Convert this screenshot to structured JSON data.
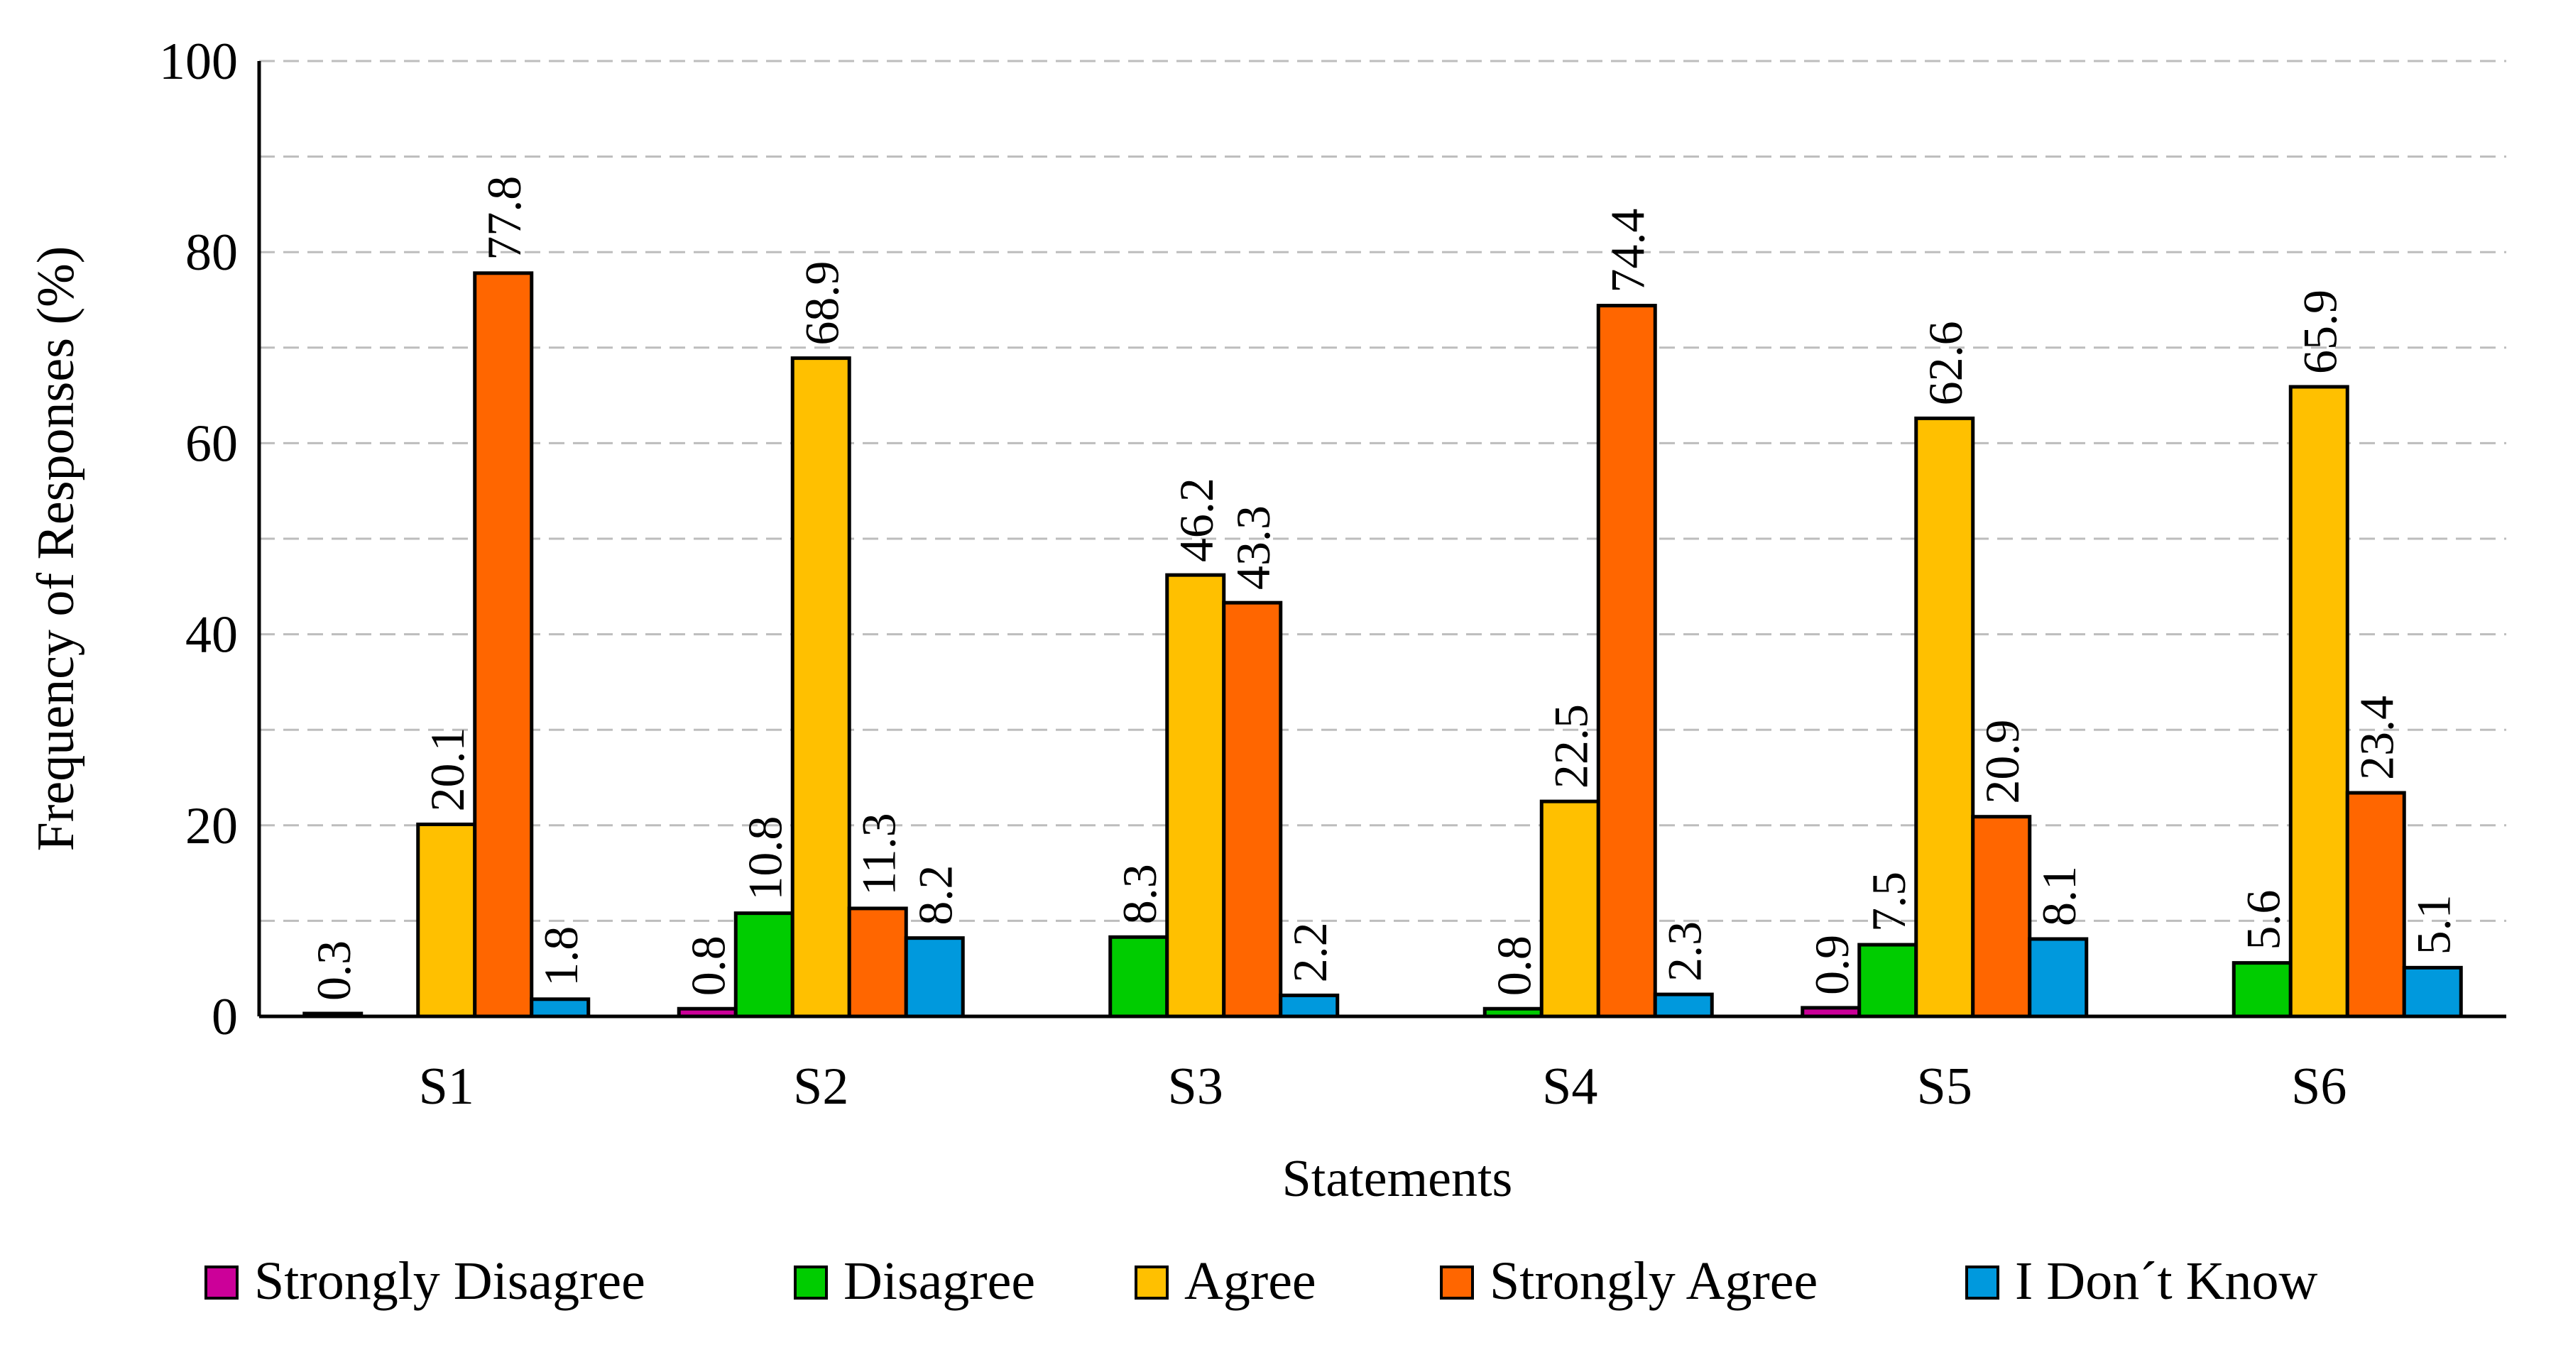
{
  "chart_data": {
    "type": "bar",
    "title": "",
    "xlabel": "Statements",
    "ylabel": "Frequency of Responses (%)",
    "ylim": [
      0,
      100
    ],
    "yticks": [
      0,
      20,
      40,
      60,
      80,
      100
    ],
    "yticks_labels": [
      "0",
      "20",
      "40",
      "60",
      "80",
      "100"
    ],
    "grid": true,
    "legend_position": "bottom",
    "categories": [
      "S1",
      "S2",
      "S3",
      "S4",
      "S5",
      "S6"
    ],
    "series": [
      {
        "name": "Strongly Disagree",
        "color": "#CC0099",
        "values": [
          0.3,
          0.8,
          null,
          null,
          0.9,
          null
        ],
        "labels": [
          "0.3",
          "0.8",
          "",
          "",
          "0.9",
          ""
        ]
      },
      {
        "name": "Disagree",
        "color": "#00CC00",
        "values": [
          null,
          10.8,
          8.3,
          0.8,
          7.5,
          5.6
        ],
        "labels": [
          "",
          "10.8",
          "8.3",
          "0.8",
          "7.5",
          "5.6"
        ]
      },
      {
        "name": "Agree",
        "color": "#FFC000",
        "values": [
          20.1,
          68.9,
          46.2,
          22.5,
          62.6,
          65.9
        ],
        "labels": [
          "20.1",
          "68.9",
          "46.2",
          "22.5",
          "62.6",
          "65.9"
        ]
      },
      {
        "name": "Strongly Agree",
        "color": "#FF6600",
        "values": [
          77.8,
          11.3,
          43.3,
          74.4,
          20.9,
          23.4
        ],
        "labels": [
          "77.8",
          "11.3",
          "43.3",
          "74.4",
          "20.9",
          "23.4"
        ]
      },
      {
        "name": "I Don´t Know",
        "color": "#0099DD",
        "values": [
          1.8,
          8.2,
          2.2,
          2.3,
          8.1,
          5.1
        ],
        "labels": [
          "1.8",
          "8.2",
          "2.2",
          "2.3",
          "8.1",
          "5.1"
        ]
      }
    ]
  }
}
